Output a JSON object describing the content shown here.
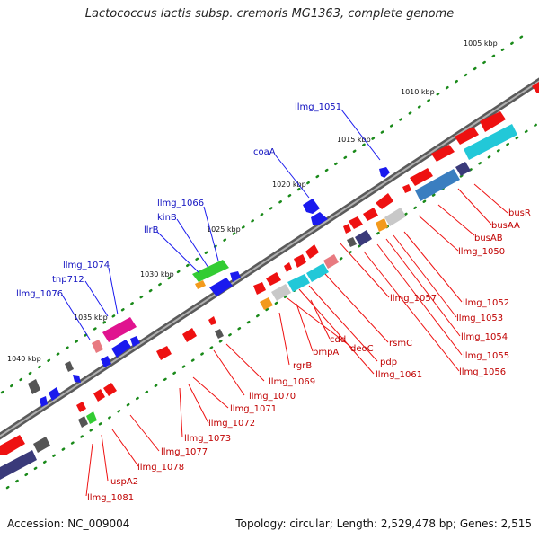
{
  "header": {
    "title": "Lactococcus lactis subsp. cremoris MG1363, complete genome"
  },
  "footer": {
    "accession": "Accession: NC_009004",
    "topology": "Topology: circular; Length: 2,529,478 bp; Genes: 2,515"
  },
  "ticks": [
    "1005 kbp",
    "1010 kbp",
    "1015 kbp",
    "1020 kbp",
    "1025 kbp",
    "1030 kbp",
    "1035 kbp",
    "1040 kbp"
  ],
  "forward_labels": [
    "llmg_1051",
    "coaA",
    "llmg_1066",
    "kinB",
    "llrB",
    "llmg_1074",
    "tnp712",
    "llmg_1076"
  ],
  "reverse_labels": [
    "busR",
    "busAA",
    "busAB",
    "llmg_1050",
    "llmg_1052",
    "llmg_1053",
    "llmg_1054",
    "llmg_1055",
    "llmg_1056",
    "llmg_1057",
    "rsmC",
    "pdp",
    "llmg_1061",
    "deoC",
    "cdd",
    "bmpA",
    "rgrB",
    "llmg_1069",
    "llmg_1070",
    "llmg_1071",
    "llmg_1072",
    "llmg_1073",
    "llmg_1077",
    "llmg_1078",
    "uspA2",
    "llmg_1081"
  ],
  "colors": {
    "forward_gene": "#1a1aee",
    "reverse_gene": "#ee1111",
    "backbone": "#888888",
    "tick_dots": "#1a8a1a"
  }
}
